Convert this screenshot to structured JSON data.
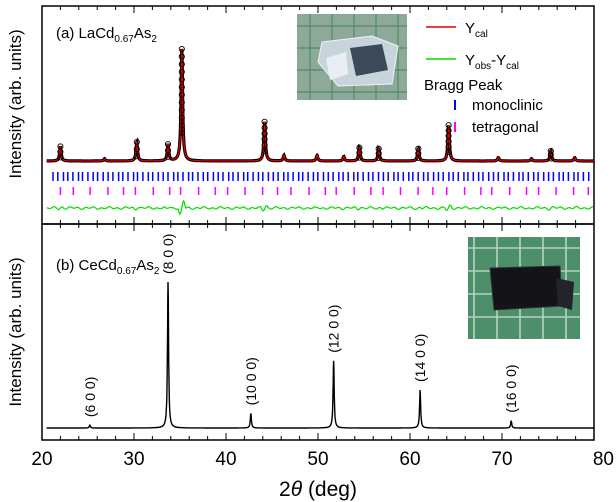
{
  "figure": {
    "xlabel_prefix": "2",
    "xlabel_theta": "θ",
    "xlabel_unit": " (deg)",
    "ylabel": "Intensity (arb. units)"
  },
  "chart_data": [
    {
      "type": "line",
      "panel": "(a)",
      "compound_main": "LaCd",
      "compound_sub1": "0.67",
      "compound_mid": "As",
      "compound_sub2": "2",
      "xlim": [
        20,
        80
      ],
      "xticks": [
        "20",
        "30",
        "40",
        "50",
        "60",
        "70",
        "80"
      ],
      "legend": {
        "placement": "top-right",
        "ycal_main": "Y",
        "ycal_sub": "cal",
        "diff_main1": "Y",
        "diff_sub1": "obs",
        "diff_main2": "-Y",
        "diff_sub2": "cal",
        "bragg_title": "Bragg Peak",
        "bragg_1": "monoclinic",
        "bragg_2": "tetragonal"
      },
      "colors": {
        "obs": "#000000",
        "cal": "#e00000",
        "diff": "#00dd00",
        "monoclinic": "#0000ff",
        "tetragonal": "#ff00ff"
      },
      "peaks": [
        {
          "x": 22.0,
          "y": 0.13
        },
        {
          "x": 26.8,
          "y": 0.02
        },
        {
          "x": 30.3,
          "y": 0.17
        },
        {
          "x": 33.7,
          "y": 0.15
        },
        {
          "x": 35.2,
          "y": 1.0
        },
        {
          "x": 44.2,
          "y": 0.35
        },
        {
          "x": 46.3,
          "y": 0.05
        },
        {
          "x": 49.9,
          "y": 0.05
        },
        {
          "x": 52.8,
          "y": 0.04
        },
        {
          "x": 54.5,
          "y": 0.12
        },
        {
          "x": 56.6,
          "y": 0.11
        },
        {
          "x": 60.9,
          "y": 0.11
        },
        {
          "x": 64.2,
          "y": 0.32
        },
        {
          "x": 69.6,
          "y": 0.03
        },
        {
          "x": 73.2,
          "y": 0.02
        },
        {
          "x": 75.3,
          "y": 0.09
        },
        {
          "x": 77.9,
          "y": 0.03
        }
      ]
    },
    {
      "type": "line",
      "panel": "(b)",
      "compound_main": "CeCd",
      "compound_sub1": "0.67",
      "compound_mid": "As",
      "compound_sub2": "2",
      "xlim": [
        20,
        80
      ],
      "colors": {
        "pattern": "#000000"
      },
      "peaks": [
        {
          "x": 25.2,
          "y": 0.02,
          "label": "(6 0 0)"
        },
        {
          "x": 33.7,
          "y": 1.0,
          "label": "(8 0 0)"
        },
        {
          "x": 42.7,
          "y": 0.1,
          "label": "(10 0 0)"
        },
        {
          "x": 51.7,
          "y": 0.46,
          "label": "(12 0 0)"
        },
        {
          "x": 61.1,
          "y": 0.26,
          "label": "(14 0 0)"
        },
        {
          "x": 71.0,
          "y": 0.05,
          "label": "(16 0 0)"
        }
      ]
    }
  ]
}
